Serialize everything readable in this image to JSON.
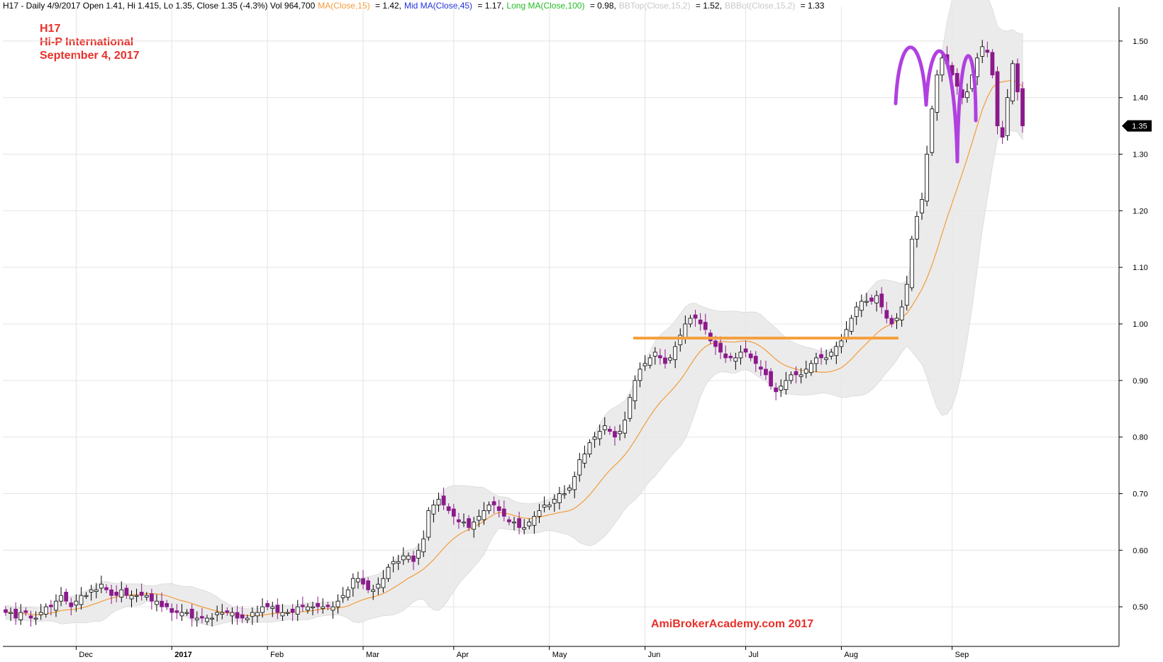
{
  "header": {
    "symbol_line": "H17 - Daily 4/9/2017 Open 1.41, Hi 1.415, Lo 1.35, Close 1.35 (-4.3%) Vol 964,700",
    "ma": "MA(Close,15)",
    "ma_value": " = 1.42,",
    "mid_ma": "Mid MA(Close,45)",
    "mid_ma_value": " = 1.17,",
    "long_ma": "Long MA(Close,100)",
    "long_ma_value": " = 0.98,",
    "bbtop": "BBTop(Close,15,2)",
    "bbtop_value": " = 1.52,",
    "bbbot": "BBBot(Close,15,2)",
    "bbbot_value": " = 1.33"
  },
  "title_block": {
    "ticker": "H17",
    "company": "Hi-P International",
    "date": "September 4, 2017"
  },
  "watermark": "AmiBrokerAcademy.com  2017",
  "colors": {
    "up_candle": "#ffffff",
    "down_candle": "#8b1a8b",
    "wick": "#000000",
    "ma_line": "#f39c3a",
    "band_fill": "#e9e9e9",
    "resistance_line": "#f5a040",
    "pattern_arc": "#b040e0",
    "title_red": "#e8302a",
    "grid": "#e4e4e4"
  },
  "chart_data": {
    "type": "candlestick",
    "ylim": [
      0.43,
      1.56
    ],
    "yticks": [
      "0.50",
      "0.60",
      "0.70",
      "0.80",
      "0.90",
      "1.00",
      "1.10",
      "1.20",
      "1.30",
      "1.40",
      "1.50"
    ],
    "ytick_values": [
      0.5,
      0.6,
      0.7,
      0.8,
      0.9,
      1.0,
      1.1,
      1.2,
      1.3,
      1.4,
      1.5
    ],
    "x_labels": [
      "Dec",
      "2017",
      "Feb",
      "Mar",
      "Apr",
      "May",
      "Jun",
      "Jul",
      "Aug",
      "Sep"
    ],
    "x_label_bar_index": [
      14,
      33,
      52,
      71,
      89,
      108,
      127,
      147,
      166,
      188
    ],
    "last_price_label": "1.35",
    "last_close": 1.35,
    "close_series": [
      0.49,
      0.49,
      0.48,
      0.49,
      0.49,
      0.48,
      0.48,
      0.49,
      0.5,
      0.5,
      0.51,
      0.52,
      0.51,
      0.5,
      0.51,
      0.52,
      0.52,
      0.53,
      0.53,
      0.54,
      0.53,
      0.52,
      0.52,
      0.53,
      0.52,
      0.52,
      0.52,
      0.52,
      0.52,
      0.51,
      0.51,
      0.5,
      0.5,
      0.49,
      0.49,
      0.49,
      0.49,
      0.48,
      0.48,
      0.48,
      0.48,
      0.48,
      0.49,
      0.49,
      0.49,
      0.49,
      0.48,
      0.48,
      0.48,
      0.49,
      0.49,
      0.5,
      0.5,
      0.5,
      0.49,
      0.49,
      0.49,
      0.49,
      0.5,
      0.5,
      0.5,
      0.5,
      0.5,
      0.5,
      0.5,
      0.5,
      0.51,
      0.52,
      0.53,
      0.55,
      0.55,
      0.54,
      0.53,
      0.53,
      0.54,
      0.55,
      0.57,
      0.58,
      0.58,
      0.59,
      0.59,
      0.58,
      0.6,
      0.62,
      0.67,
      0.68,
      0.69,
      0.68,
      0.67,
      0.66,
      0.65,
      0.65,
      0.64,
      0.65,
      0.66,
      0.67,
      0.68,
      0.68,
      0.67,
      0.66,
      0.65,
      0.65,
      0.64,
      0.64,
      0.65,
      0.66,
      0.67,
      0.68,
      0.68,
      0.69,
      0.7,
      0.7,
      0.71,
      0.73,
      0.76,
      0.77,
      0.79,
      0.8,
      0.81,
      0.82,
      0.81,
      0.8,
      0.81,
      0.83,
      0.87,
      0.9,
      0.92,
      0.93,
      0.94,
      0.95,
      0.94,
      0.93,
      0.94,
      0.96,
      0.98,
      1.0,
      1.01,
      1.01,
      1.0,
      0.99,
      0.97,
      0.96,
      0.95,
      0.94,
      0.94,
      0.94,
      0.95,
      0.95,
      0.94,
      0.93,
      0.92,
      0.91,
      0.89,
      0.88,
      0.89,
      0.9,
      0.91,
      0.91,
      0.91,
      0.92,
      0.93,
      0.94,
      0.94,
      0.94,
      0.95,
      0.96,
      0.97,
      0.99,
      1.01,
      1.03,
      1.04,
      1.04,
      1.04,
      1.05,
      1.03,
      1.01,
      1.0,
      1.01,
      1.03,
      1.07,
      1.15,
      1.19,
      1.22,
      1.3,
      1.38,
      1.44,
      1.47,
      1.46,
      1.44,
      1.42,
      1.4,
      1.41,
      1.44,
      1.47,
      1.49,
      1.48,
      1.44,
      1.35,
      1.33,
      1.4,
      1.46,
      1.41,
      1.35
    ],
    "annotations": [
      "resistance ~0.975",
      "triple-top arcs near 1.50"
    ]
  }
}
